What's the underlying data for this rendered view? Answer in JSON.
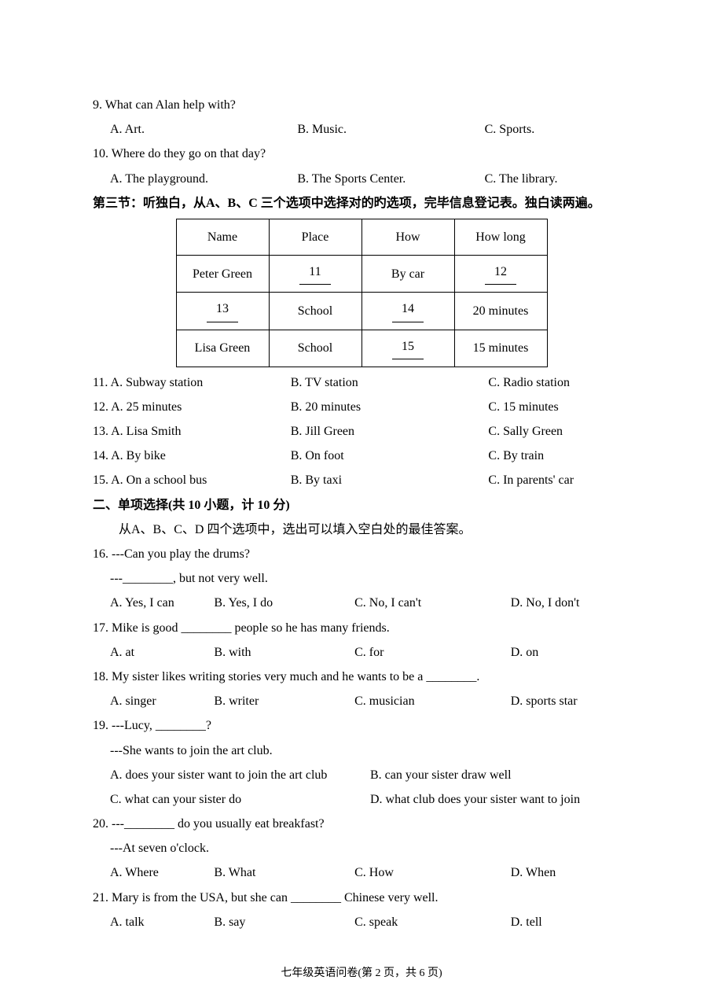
{
  "q9": {
    "text": "9. What can Alan help with?",
    "a": "A. Art.",
    "b": "B. Music.",
    "c": "C. Sports."
  },
  "q10": {
    "text": "10. Where  do they go on that day?",
    "a": "A. The playground.",
    "b": "B. The Sports Center.",
    "c": "C. The library."
  },
  "section3_title": "第三节：听独白，从A、B、C 三个选项中选择对的旳选项，完毕信息登记表。独白读两遍。",
  "table": {
    "headers": {
      "c1": "Name",
      "c2": "Place",
      "c3": "How",
      "c4": "How long"
    },
    "r1": {
      "c1": "Peter Green",
      "c2": "11",
      "c3": "By car",
      "c4": "12"
    },
    "r2": {
      "c1": "13",
      "c2": "School",
      "c3": "14",
      "c4": "20 minutes"
    },
    "r3": {
      "c1": "Lisa Green",
      "c2": "School",
      "c3": "15",
      "c4": "15 minutes"
    }
  },
  "q11": {
    "a": "11. A. Subway station",
    "b": "B. TV station",
    "c": "C. Radio station"
  },
  "q12": {
    "a": "12. A. 25 minutes",
    "b": "B. 20 minutes",
    "c": "C. 15 minutes"
  },
  "q13": {
    "a": "13. A. Lisa Smith",
    "b": "B. Jill Green",
    "c": "C. Sally Green"
  },
  "q14": {
    "a": "14. A. By bike",
    "b": "B. On foot",
    "c": "C. By train"
  },
  "q15": {
    "a": "15. A. On a school bus",
    "b": "B. By taxi",
    "c": "C. In parents' car"
  },
  "section2_title": "二、单项选择(共 10 小题，计 10 分)",
  "section2_sub": "从A、B、C、D 四个选项中，选出可以填入空白处的最佳答案。",
  "q16": {
    "l1": "16. ---Can you play the drums?",
    "l2": "---________, but not very well.",
    "a": "A. Yes, I can",
    "b": "B. Yes, I do",
    "c": "C. No, I can't",
    "d": "D. No, I don't"
  },
  "q17": {
    "l1": "17. Mike is good ________ people so he has many friends.",
    "a": "A. at",
    "b": "B. with",
    "c": "C. for",
    "d": "D. on"
  },
  "q18": {
    "l1": "18. My sister likes writing stories very much and he wants to be a ________.",
    "a": "A. singer",
    "b": "B. writer",
    "c": "C. musician",
    "d": "D. sports star"
  },
  "q19": {
    "l1": "19. ---Lucy, ________?",
    "l2": "---She wants to join the art club.",
    "a": "A. does your sister want to join the art club",
    "b": "B. can your sister draw well",
    "c": "C. what can your sister do",
    "d": "D. what club does your sister want to join"
  },
  "q20": {
    "l1": "20. ---________ do you usually eat breakfast?",
    "l2": "---At seven o'clock.",
    "a": "A. Where",
    "b": "B. What",
    "c": "C. How",
    "d": "D. When"
  },
  "q21": {
    "l1": "21. Mary is from the USA, but she can ________ Chinese very well.",
    "a": "A. talk",
    "b": "B. say",
    "c": "C. speak",
    "d": "D. tell"
  },
  "footer": "七年级英语问卷(第 2 页，共 6 页)"
}
